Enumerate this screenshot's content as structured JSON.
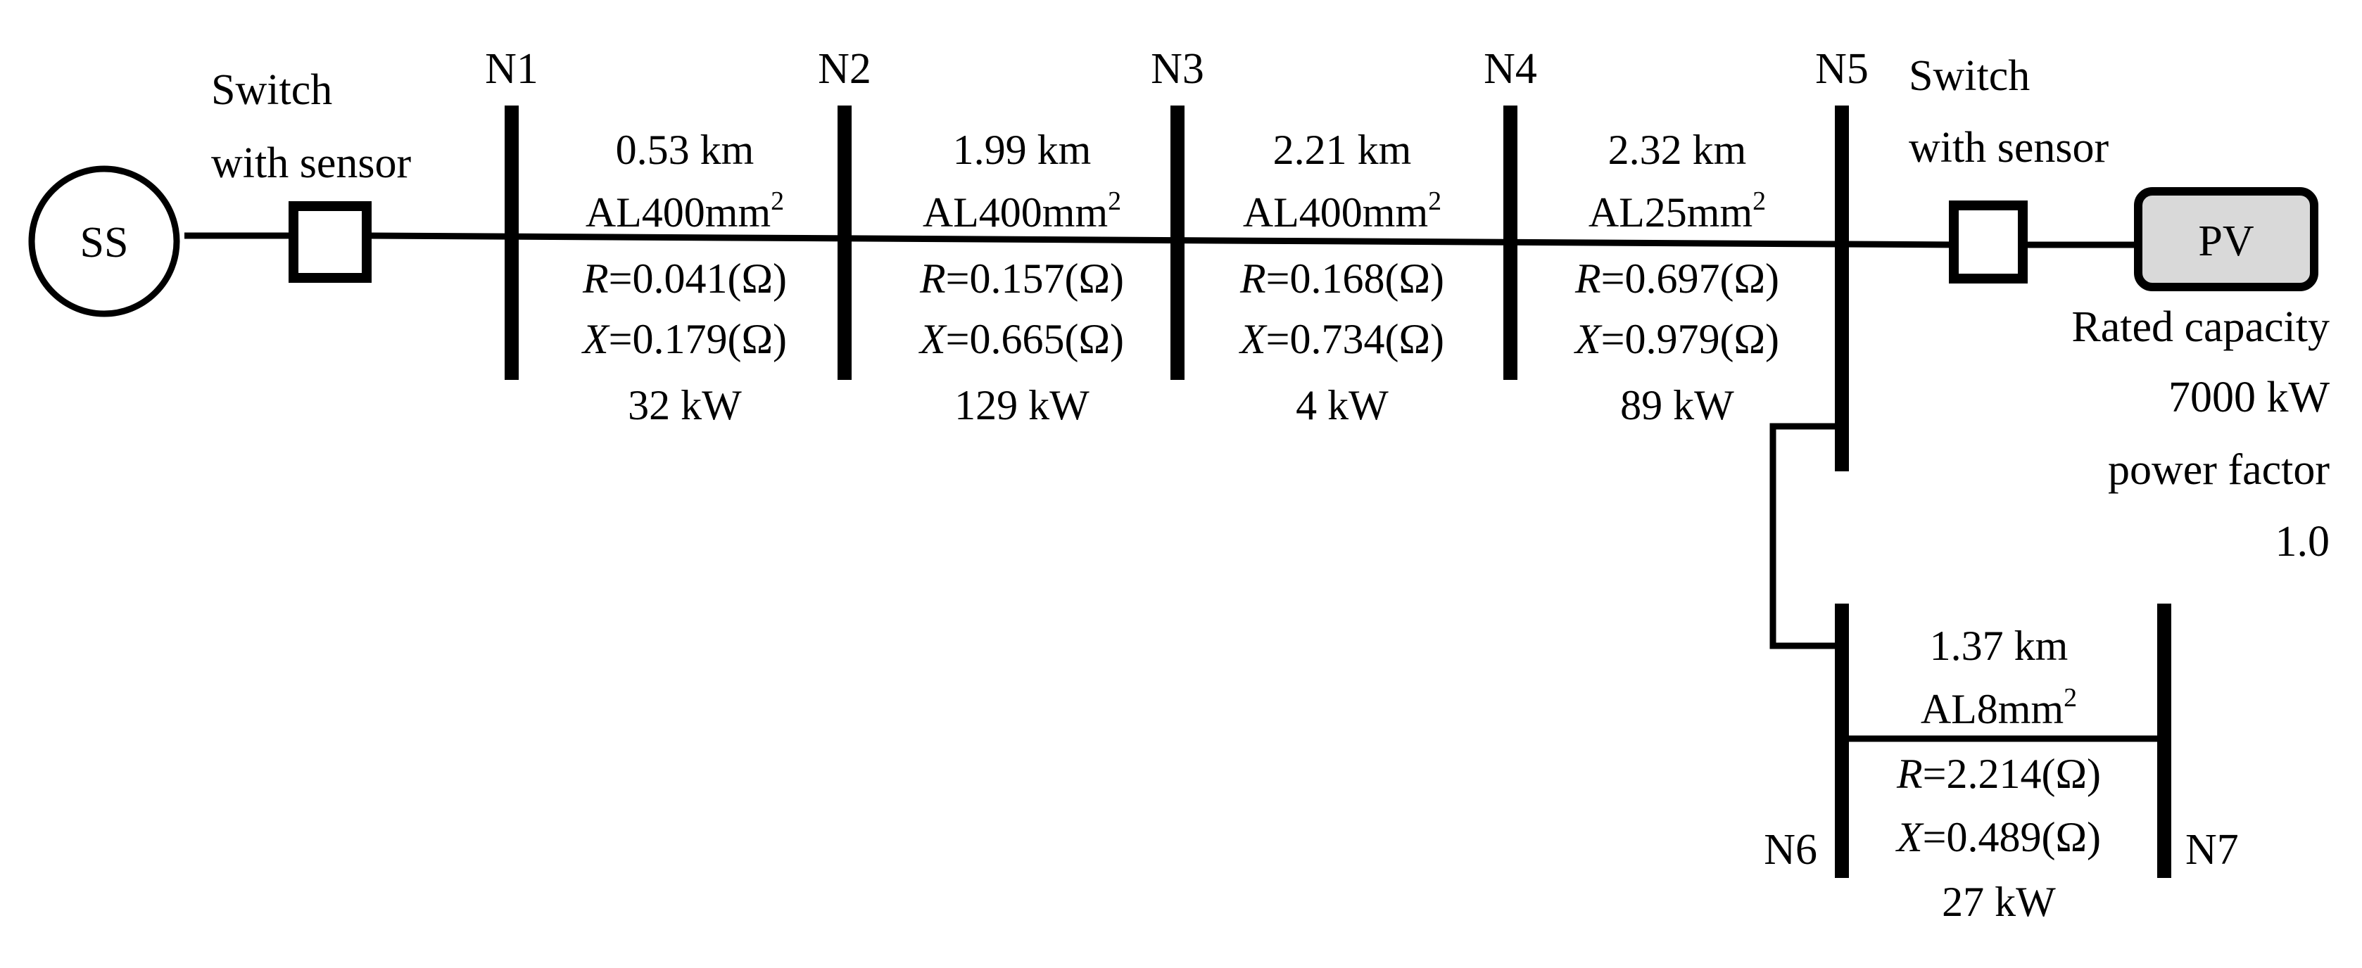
{
  "source": {
    "label": "SS"
  },
  "switches": [
    {
      "line1": "Switch",
      "line2": "with sensor"
    },
    {
      "line1": "Switch",
      "line2": "with sensor"
    }
  ],
  "nodes": [
    "N1",
    "N2",
    "N3",
    "N4",
    "N5",
    "N6",
    "N7"
  ],
  "segments": [
    {
      "length": "0.53 km",
      "conductor": "AL400mm",
      "sup": "2",
      "r_sym": "R",
      "r_val": "=0.041(Ω)",
      "x_sym": "X",
      "x_val": "=0.179(Ω)",
      "load": "32 kW"
    },
    {
      "length": "1.99 km",
      "conductor": "AL400mm",
      "sup": "2",
      "r_sym": "R",
      "r_val": "=0.157(Ω)",
      "x_sym": "X",
      "x_val": "=0.665(Ω)",
      "load": "129 kW"
    },
    {
      "length": "2.21 km",
      "conductor": "AL400mm",
      "sup": "2",
      "r_sym": "R",
      "r_val": "=0.168(Ω)",
      "x_sym": "X",
      "x_val": "=0.734(Ω)",
      "load": "4 kW"
    },
    {
      "length": "2.32 km",
      "conductor": "AL25mm",
      "sup": "2",
      "r_sym": "R",
      "r_val": "=0.697(Ω)",
      "x_sym": "X",
      "x_val": "=0.979(Ω)",
      "load": "89 kW"
    },
    {
      "length": "1.37 km",
      "conductor": "AL8mm",
      "sup": "2",
      "r_sym": "R",
      "r_val": "=2.214(Ω)",
      "x_sym": "X",
      "x_val": "=0.489(Ω)",
      "load": "27 kW"
    }
  ],
  "pv": {
    "label": "PV",
    "line1": "Rated capacity",
    "line2": "7000 kW",
    "line3": "power factor",
    "line4": "1.0"
  }
}
